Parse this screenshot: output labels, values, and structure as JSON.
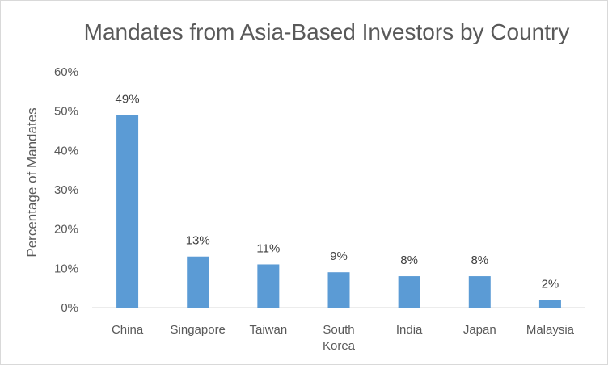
{
  "chart_data": {
    "type": "bar",
    "title": "Mandates from Asia-Based Investors by Country",
    "xlabel": "",
    "ylabel": "Percentage of Mandates",
    "categories": [
      "China",
      "Singapore",
      "Taiwan",
      "South Korea",
      "India",
      "Japan",
      "Malaysia"
    ],
    "category_lines": [
      [
        "China"
      ],
      [
        "Singapore"
      ],
      [
        "Taiwan"
      ],
      [
        "South",
        "Korea"
      ],
      [
        "India"
      ],
      [
        "Japan"
      ],
      [
        "Malaysia"
      ]
    ],
    "values": [
      49,
      13,
      11,
      9,
      8,
      8,
      2
    ],
    "data_labels": [
      "49%",
      "13%",
      "11%",
      "9%",
      "8%",
      "8%",
      "2%"
    ],
    "ylim": [
      0,
      60
    ],
    "yticks": [
      0,
      10,
      20,
      30,
      40,
      50,
      60
    ],
    "ytick_labels": [
      "0%",
      "10%",
      "20%",
      "30%",
      "40%",
      "50%",
      "60%"
    ],
    "bar_color": "#5b9bd5",
    "grid": false,
    "legend": "none"
  }
}
